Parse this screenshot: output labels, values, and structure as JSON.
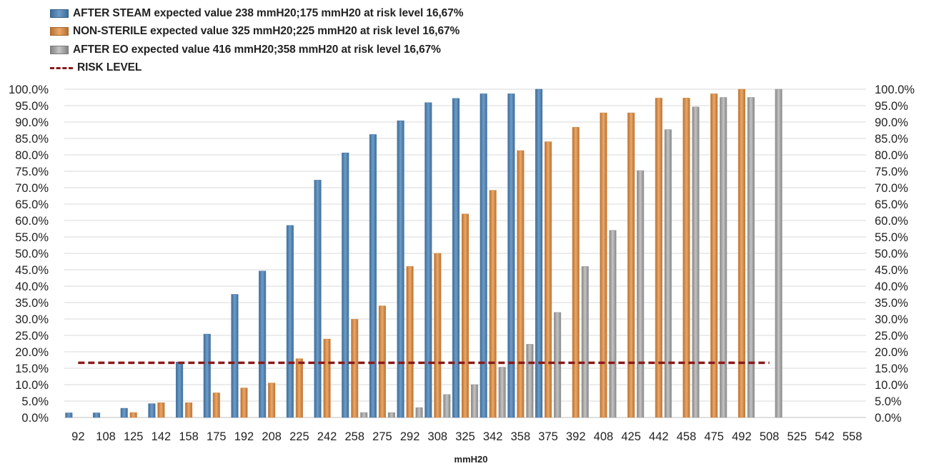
{
  "chart_data": {
    "type": "bar",
    "xlabel": "mmH20",
    "ylabel": "",
    "ylim": [
      0,
      100
    ],
    "y_ticks": [
      "0.0%",
      "5.0%",
      "10.0%",
      "15.0%",
      "20.0%",
      "25.0%",
      "30.0%",
      "35.0%",
      "40.0%",
      "45.0%",
      "50.0%",
      "55.0%",
      "60.0%",
      "65.0%",
      "70.0%",
      "75.0%",
      "80.0%",
      "85.0%",
      "90.0%",
      "95.0%",
      "100.0%"
    ],
    "categories": [
      "92",
      "108",
      "125",
      "142",
      "158",
      "175",
      "192",
      "208",
      "225",
      "242",
      "258",
      "275",
      "292",
      "308",
      "325",
      "342",
      "358",
      "375",
      "392",
      "408",
      "425",
      "442",
      "458",
      "475",
      "492",
      "508",
      "525",
      "542",
      "558"
    ],
    "grid": "horizontal",
    "legend_position": "top-left",
    "secondary_axis": "right, same scale 0.0% to 100.0%",
    "series": [
      {
        "name": "AFTER STEAM expected value 238 mmH20;175 mmH20 at risk level 16,67%",
        "color": "#4a7aa7",
        "values": [
          1.4,
          1.4,
          2.8,
          4.2,
          16.9,
          25.4,
          37.5,
          44.6,
          58.5,
          72.3,
          80.6,
          86.2,
          90.4,
          95.9,
          97.2,
          98.6,
          98.6,
          100.0,
          null,
          null,
          null,
          null,
          null,
          null,
          null,
          null,
          null,
          null,
          null
        ]
      },
      {
        "name": "NON-STERILE expected value 325 mmH20;225 mmH20 at risk level 16,67%",
        "color": "#d08a4a",
        "values": [
          null,
          null,
          1.5,
          4.5,
          4.5,
          7.5,
          9.0,
          10.5,
          17.9,
          23.9,
          29.9,
          34.0,
          46.0,
          50.0,
          62.0,
          69.2,
          81.3,
          84.0,
          88.4,
          92.8,
          92.8,
          97.3,
          97.3,
          98.6,
          100.0,
          null,
          null,
          null,
          null
        ]
      },
      {
        "name": "AFTER EO expected value 416 mmH20;358 mmH20 at risk level 16,67%",
        "color": "#9b9b9b",
        "values": [
          null,
          null,
          null,
          null,
          null,
          null,
          null,
          null,
          null,
          null,
          1.5,
          1.5,
          3.0,
          7.0,
          10.0,
          15.3,
          22.3,
          32.0,
          46.0,
          57.0,
          75.2,
          87.7,
          94.6,
          97.5,
          97.5,
          100.0,
          null,
          null,
          null
        ]
      }
    ],
    "risk_line": {
      "name": "RISK LEVEL",
      "color": "#8b1a1a",
      "value": 16.67,
      "from_category": "92",
      "to_category": "508"
    }
  }
}
